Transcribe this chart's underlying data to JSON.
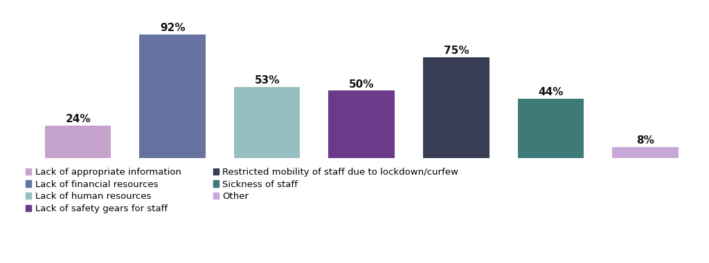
{
  "values": [
    24,
    92,
    53,
    50,
    75,
    44,
    8
  ],
  "colors": [
    "#c5a3cc",
    "#6672a0",
    "#97bfc0",
    "#6b3a8a",
    "#383d54",
    "#3d7a78",
    "#c8a8d8"
  ],
  "labels": [
    "24%",
    "92%",
    "53%",
    "50%",
    "75%",
    "44%",
    "8%"
  ],
  "legend_entries_col1": [
    {
      "label": "Lack of appropriate information",
      "color": "#c5a3cc"
    },
    {
      "label": "Lack of human resources",
      "color": "#97bfc0"
    },
    {
      "label": "Restricted mobility of staff due to lockdown/curfew",
      "color": "#383d54"
    },
    {
      "label": "Other",
      "color": "#c8a8d8"
    }
  ],
  "legend_entries_col2": [
    {
      "label": "Lack of financial resources",
      "color": "#6672a0"
    },
    {
      "label": "Lack of safety gears for staff",
      "color": "#6b3a8a"
    },
    {
      "label": "Sickness of staff",
      "color": "#3d7a78"
    }
  ],
  "ylim": [
    0,
    100
  ],
  "background_color": "#ffffff",
  "label_fontsize": 11,
  "legend_fontsize": 9.5
}
